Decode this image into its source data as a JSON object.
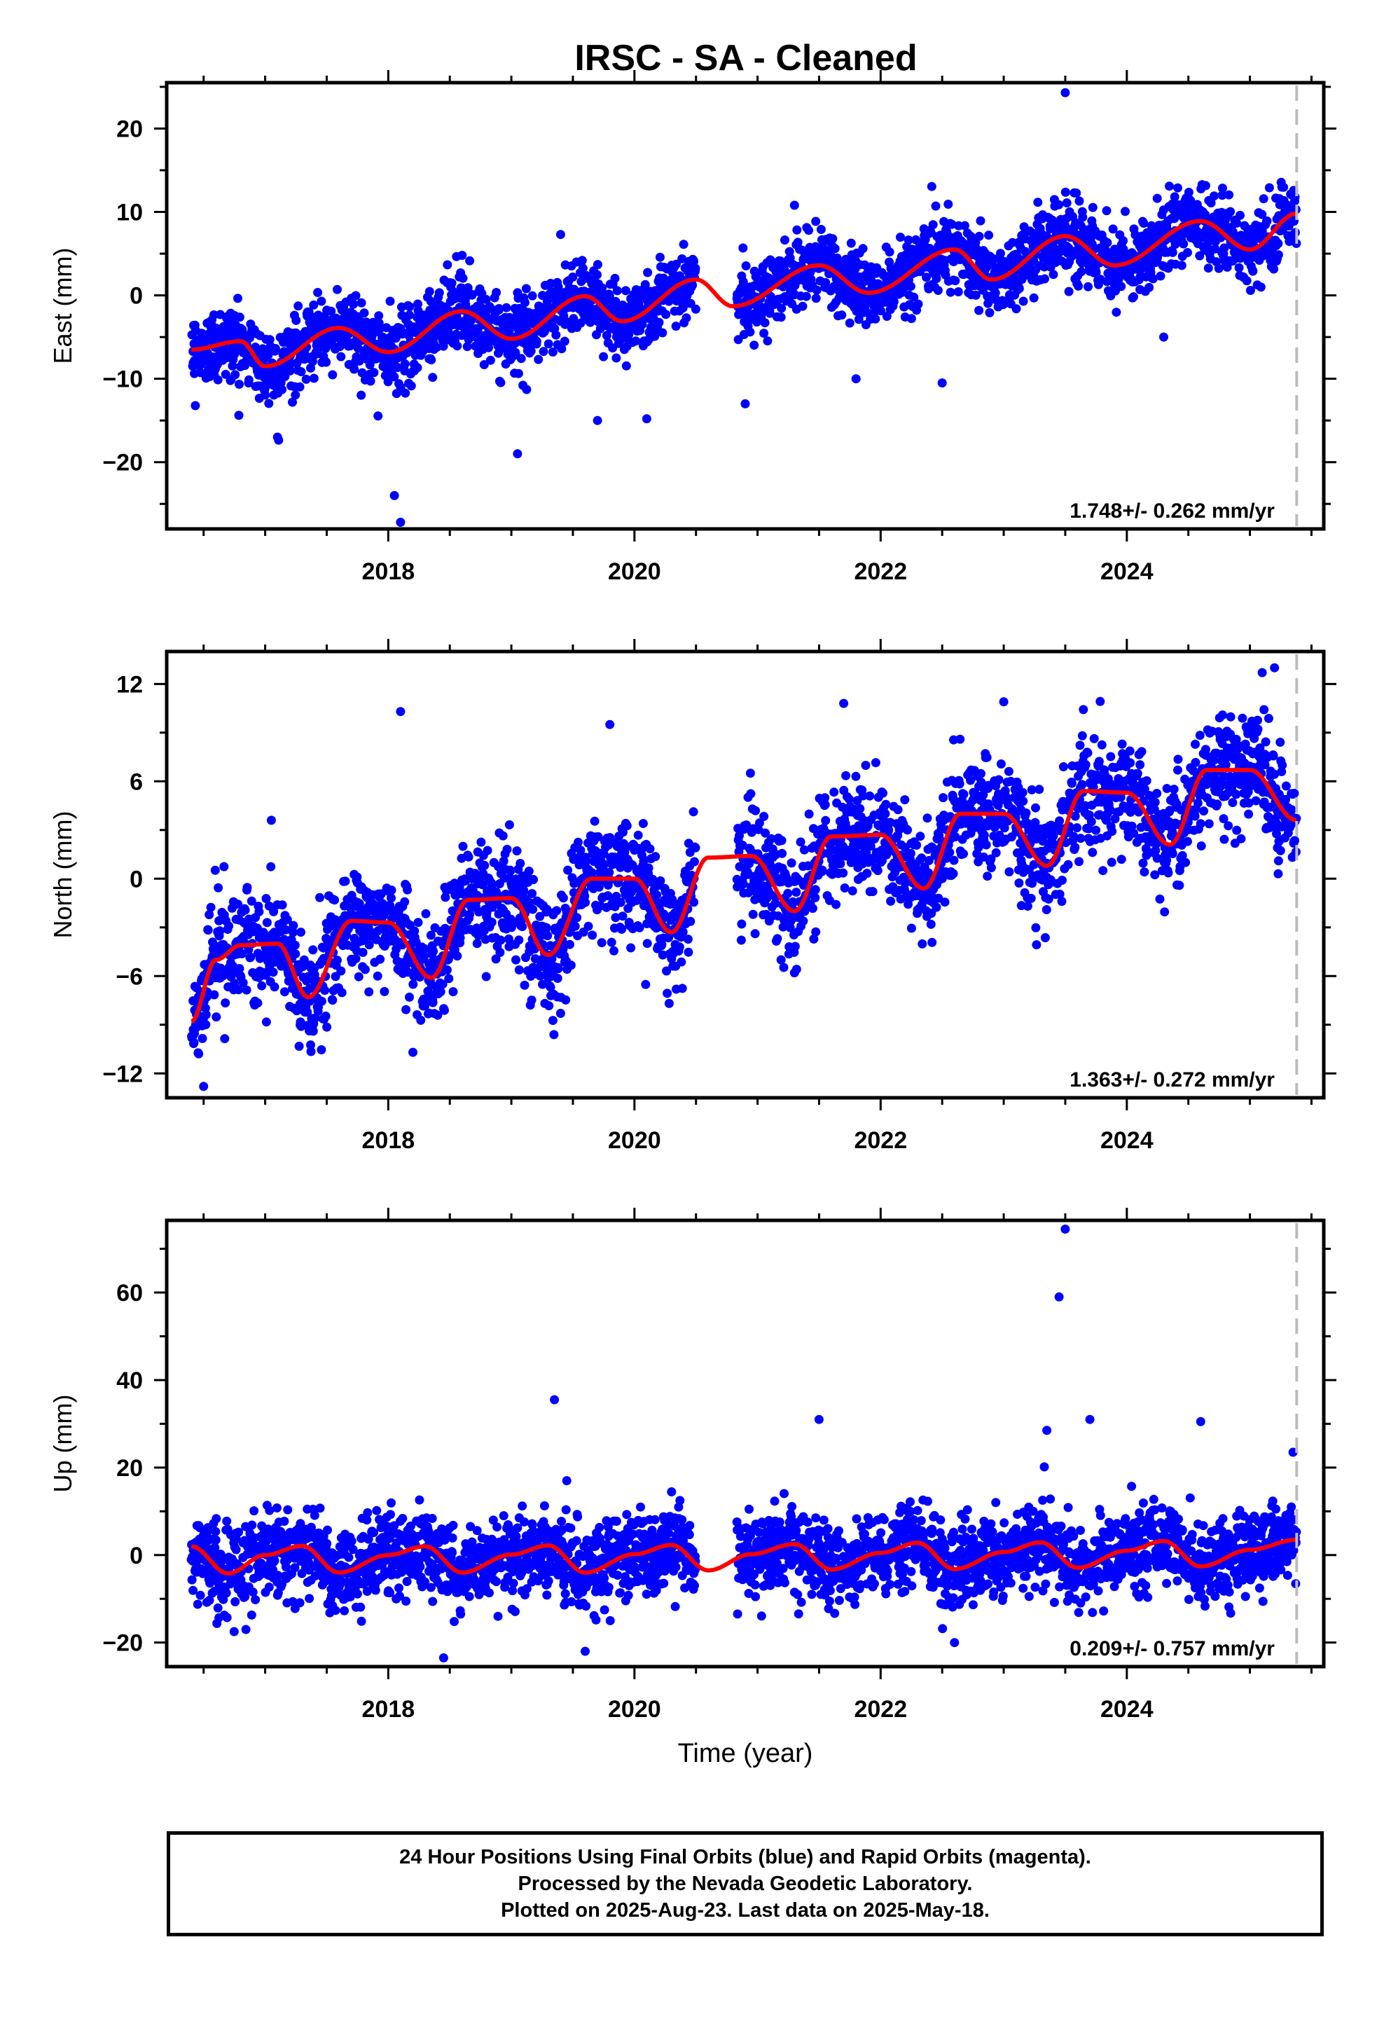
{
  "title": "IRSC  - SA - Cleaned",
  "colors": {
    "points": "#0000ff",
    "model": "#ff0000",
    "end_marker": "#bbbbbb",
    "axes": "#000000"
  },
  "chart_data": [
    {
      "type": "scatter",
      "ylabel": "East (mm)",
      "xlim": [
        2016.2,
        2025.6
      ],
      "ylim": [
        -28,
        25.5
      ],
      "yticks": [
        {
          "value": -20,
          "label": "−20"
        },
        {
          "value": -10,
          "label": "−10"
        },
        {
          "value": 0,
          "label": "0"
        },
        {
          "value": 10,
          "label": "10"
        },
        {
          "value": 20,
          "label": "20"
        }
      ],
      "xticks": [
        {
          "value": 2018,
          "label": "2018"
        },
        {
          "value": 2020,
          "label": "2020"
        },
        {
          "value": 2022,
          "label": "2022"
        },
        {
          "value": 2024,
          "label": "2024"
        }
      ],
      "xlabel": "",
      "rate_label": "1.748+/- 0.262 mm/yr",
      "last_data_marker": 2025.38,
      "model_x": [
        2016.4,
        2016.8,
        2017.0,
        2017.6,
        2018.0,
        2018.6,
        2019.0,
        2019.6,
        2019.9,
        2020.5,
        2020.8,
        2021.5,
        2021.9,
        2022.6,
        2022.9,
        2023.5,
        2023.9,
        2024.6,
        2025.0,
        2025.38
      ],
      "model_y": [
        -6.5,
        -5.5,
        -8.5,
        -3.9,
        -6.8,
        -1.9,
        -5.2,
        -0.1,
        -3.1,
        1.9,
        -1.3,
        3.6,
        0.3,
        5.5,
        1.9,
        7.1,
        3.6,
        8.9,
        5.5,
        9.8
      ],
      "series": [
        {
          "name": "Final Orbits",
          "color": "#0000ff"
        }
      ],
      "outliers": [
        {
          "x": 2018.05,
          "y": -24.0
        },
        {
          "x": 2018.1,
          "y": -27.2
        },
        {
          "x": 2019.05,
          "y": -19.0
        },
        {
          "x": 2017.1,
          "y": -17.0
        },
        {
          "x": 2023.5,
          "y": 24.3
        },
        {
          "x": 2021.3,
          "y": 10.8
        },
        {
          "x": 2019.4,
          "y": 7.3
        },
        {
          "x": 2018.6,
          "y": 4.8
        },
        {
          "x": 2024.3,
          "y": -5.0
        },
        {
          "x": 2022.5,
          "y": -10.5
        },
        {
          "x": 2021.8,
          "y": -10.0
        },
        {
          "x": 2020.1,
          "y": -14.8
        },
        {
          "x": 2019.7,
          "y": -15.0
        },
        {
          "x": 2020.9,
          "y": -13.0
        }
      ]
    },
    {
      "type": "scatter",
      "ylabel": "North (mm)",
      "xlim": [
        2016.2,
        2025.6
      ],
      "ylim": [
        -13.5,
        14
      ],
      "yticks": [
        {
          "value": -12,
          "label": "−12"
        },
        {
          "value": -6,
          "label": "−6"
        },
        {
          "value": 0,
          "label": "0"
        },
        {
          "value": 6,
          "label": "6"
        },
        {
          "value": 12,
          "label": "12"
        }
      ],
      "xticks": [
        {
          "value": 2018,
          "label": "2018"
        },
        {
          "value": 2020,
          "label": "2020"
        },
        {
          "value": 2022,
          "label": "2022"
        },
        {
          "value": 2024,
          "label": "2024"
        }
      ],
      "xlabel": "",
      "rate_label": "1.363+/- 0.272 mm/yr",
      "last_data_marker": 2025.38,
      "model_x": [
        2016.4,
        2016.6,
        2016.8,
        2017.1,
        2017.35,
        2017.7,
        2018.0,
        2018.35,
        2018.65,
        2019.0,
        2019.3,
        2019.65,
        2020.0,
        2020.3,
        2020.6,
        2020.95,
        2021.3,
        2021.6,
        2022.0,
        2022.35,
        2022.65,
        2023.0,
        2023.35,
        2023.65,
        2024.0,
        2024.35,
        2024.65,
        2025.0,
        2025.38
      ],
      "model_y": [
        -8.8,
        -5.0,
        -4.1,
        -4.0,
        -7.3,
        -2.6,
        -2.7,
        -6.1,
        -1.3,
        -1.2,
        -4.7,
        0.0,
        0.0,
        -3.3,
        1.3,
        1.4,
        -2.0,
        2.6,
        2.7,
        -0.6,
        4.0,
        4.0,
        0.8,
        5.4,
        5.3,
        2.1,
        6.7,
        6.7,
        3.6
      ],
      "series": [
        {
          "name": "Final Orbits",
          "color": "#0000ff"
        }
      ],
      "outliers": [
        {
          "x": 2018.1,
          "y": 10.3
        },
        {
          "x": 2019.8,
          "y": 9.5
        },
        {
          "x": 2017.05,
          "y": 3.6
        },
        {
          "x": 2016.5,
          "y": -12.8
        },
        {
          "x": 2025.2,
          "y": 13.0
        },
        {
          "x": 2025.1,
          "y": 12.7
        },
        {
          "x": 2023.0,
          "y": 10.9
        },
        {
          "x": 2021.7,
          "y": 10.8
        },
        {
          "x": 2019.4,
          "y": -8.3
        },
        {
          "x": 2018.2,
          "y": -10.7
        },
        {
          "x": 2021.3,
          "y": -5.8
        }
      ]
    },
    {
      "type": "scatter",
      "ylabel": "Up (mm)",
      "xlim": [
        2016.2,
        2025.6
      ],
      "ylim": [
        -25.5,
        76.5
      ],
      "yticks": [
        {
          "value": -20,
          "label": "−20"
        },
        {
          "value": 0,
          "label": "0"
        },
        {
          "value": 20,
          "label": "20"
        },
        {
          "value": 40,
          "label": "40"
        },
        {
          "value": 60,
          "label": "60"
        }
      ],
      "xticks": [
        {
          "value": 2018,
          "label": "2018"
        },
        {
          "value": 2020,
          "label": "2020"
        },
        {
          "value": 2022,
          "label": "2022"
        },
        {
          "value": 2024,
          "label": "2024"
        }
      ],
      "xlabel": "Time (year)",
      "rate_label": "0.209+/- 0.757 mm/yr",
      "last_data_marker": 2025.38,
      "model_x": [
        2016.4,
        2016.7,
        2017.0,
        2017.3,
        2017.6,
        2018.0,
        2018.3,
        2018.6,
        2019.0,
        2019.3,
        2019.6,
        2020.0,
        2020.3,
        2020.6,
        2020.95,
        2021.3,
        2021.6,
        2022.0,
        2022.3,
        2022.6,
        2023.0,
        2023.3,
        2023.6,
        2024.0,
        2024.3,
        2024.6,
        2025.0,
        2025.38
      ],
      "model_y": [
        2.0,
        -4.2,
        0.0,
        2.1,
        -4.0,
        0.0,
        2.0,
        -4.0,
        0.1,
        2.2,
        -4.0,
        0.2,
        2.3,
        -3.5,
        0.2,
        2.5,
        -3.3,
        0.5,
        2.8,
        -3.2,
        0.7,
        2.9,
        -2.9,
        1.0,
        3.2,
        -2.6,
        1.2,
        3.5
      ],
      "series": [
        {
          "name": "Final Orbits",
          "color": "#0000ff"
        }
      ],
      "outliers": [
        {
          "x": 2023.5,
          "y": 74.5
        },
        {
          "x": 2023.45,
          "y": 59.0
        },
        {
          "x": 2019.35,
          "y": 35.5
        },
        {
          "x": 2021.5,
          "y": 31.0
        },
        {
          "x": 2023.7,
          "y": 31.0
        },
        {
          "x": 2024.6,
          "y": 30.5
        },
        {
          "x": 2023.35,
          "y": 28.5
        },
        {
          "x": 2025.35,
          "y": 23.5
        },
        {
          "x": 2019.45,
          "y": 17.0
        },
        {
          "x": 2018.45,
          "y": -23.5
        },
        {
          "x": 2019.6,
          "y": -22.0
        },
        {
          "x": 2022.6,
          "y": -20.0
        }
      ]
    }
  ],
  "footer": {
    "line1": "24 Hour Positions Using Final Orbits (blue) and Rapid Orbits (magenta).",
    "line2": "Processed by the Nevada Geodetic Laboratory.",
    "line3": "Plotted on 2025-Aug-23. Last data on 2025-May-18."
  }
}
